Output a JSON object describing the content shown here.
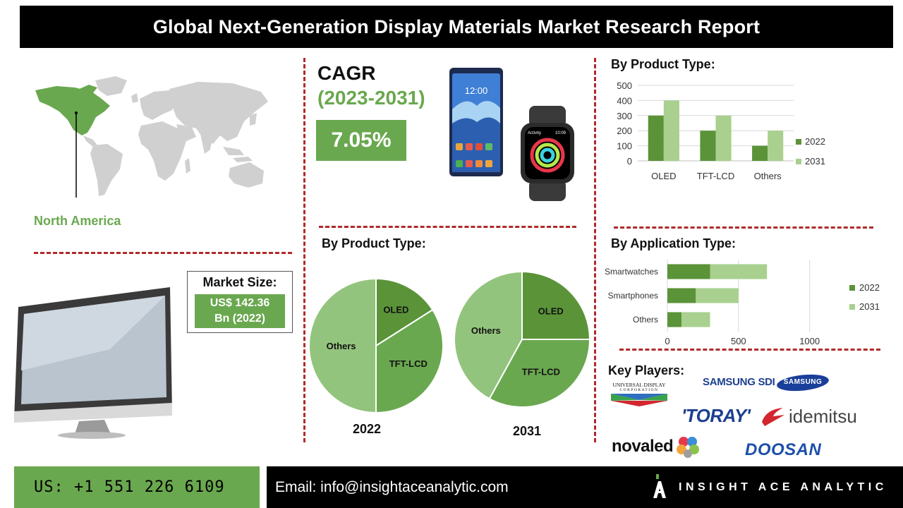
{
  "title": "Global Next-Generation Display Materials Market Research Report",
  "region": {
    "label": "North America"
  },
  "cagr": {
    "title": "CAGR",
    "years": "(2023-2031)",
    "value": "7.05%"
  },
  "market_size": {
    "title": "Market Size:",
    "line1": "US$ 142.36",
    "line2": "Bn (2022)"
  },
  "phone_screen": {
    "time": "12:00",
    "watch_app": "Activity",
    "watch_time": "10:09"
  },
  "sections": {
    "product_type_bar": "By Product Type:",
    "product_type_pie": "By Product Type:",
    "application_type": "By Application Type:",
    "key_players": "Key Players:"
  },
  "key_players": {
    "universal_display_l1": "UNIVERSAL DISPLAY",
    "universal_display_l2": "CORPORATION",
    "samsung_sdi": "SAMSUNG SDI",
    "samsung": "SAMSUNG",
    "toray": "'TORAY'",
    "idemitsu": "idemitsu",
    "novaled": "novaled",
    "doosan": "DOOSAN"
  },
  "footer": {
    "phone": "US: +1 551 226 6109",
    "email": "Email: info@insightaceanalytic.com",
    "brand": "INSIGHT ACE ANALYTIC"
  },
  "colors": {
    "accent_green": "#6aa84f",
    "dark_green": "#5b9339",
    "light_green": "#a9d08e",
    "title_bg": "#000000",
    "divider_red": "#b02a2a"
  },
  "chart_data": [
    {
      "type": "bar",
      "title": "By Product Type:",
      "categories": [
        "OLED",
        "TFT-LCD",
        "Others"
      ],
      "series": [
        {
          "name": "2022",
          "values": [
            300,
            200,
            100
          ]
        },
        {
          "name": "2031",
          "values": [
            400,
            300,
            200
          ]
        }
      ],
      "ylim": [
        0,
        500
      ],
      "yticks": [
        0,
        100,
        200,
        300,
        400,
        500
      ],
      "grid": true,
      "legend": "right"
    },
    {
      "type": "pie",
      "title": "2022",
      "labels": [
        "OLED",
        "TFT-LCD",
        "Others"
      ],
      "values": [
        16,
        34,
        50
      ]
    },
    {
      "type": "pie",
      "title": "2031",
      "labels": [
        "OLED",
        "TFT-LCD",
        "Others"
      ],
      "values": [
        25,
        33,
        42
      ]
    },
    {
      "type": "bar",
      "orientation": "horizontal",
      "stacked": true,
      "title": "By Application Type:",
      "categories": [
        "Smartwatches",
        "Smartphones",
        "Others"
      ],
      "series": [
        {
          "name": "2022",
          "values": [
            300,
            200,
            100
          ]
        },
        {
          "name": "2031",
          "values": [
            400,
            300,
            200
          ]
        }
      ],
      "xlim": [
        0,
        1200
      ],
      "xticks": [
        0,
        500,
        1000
      ],
      "grid": true,
      "legend": "right"
    }
  ]
}
